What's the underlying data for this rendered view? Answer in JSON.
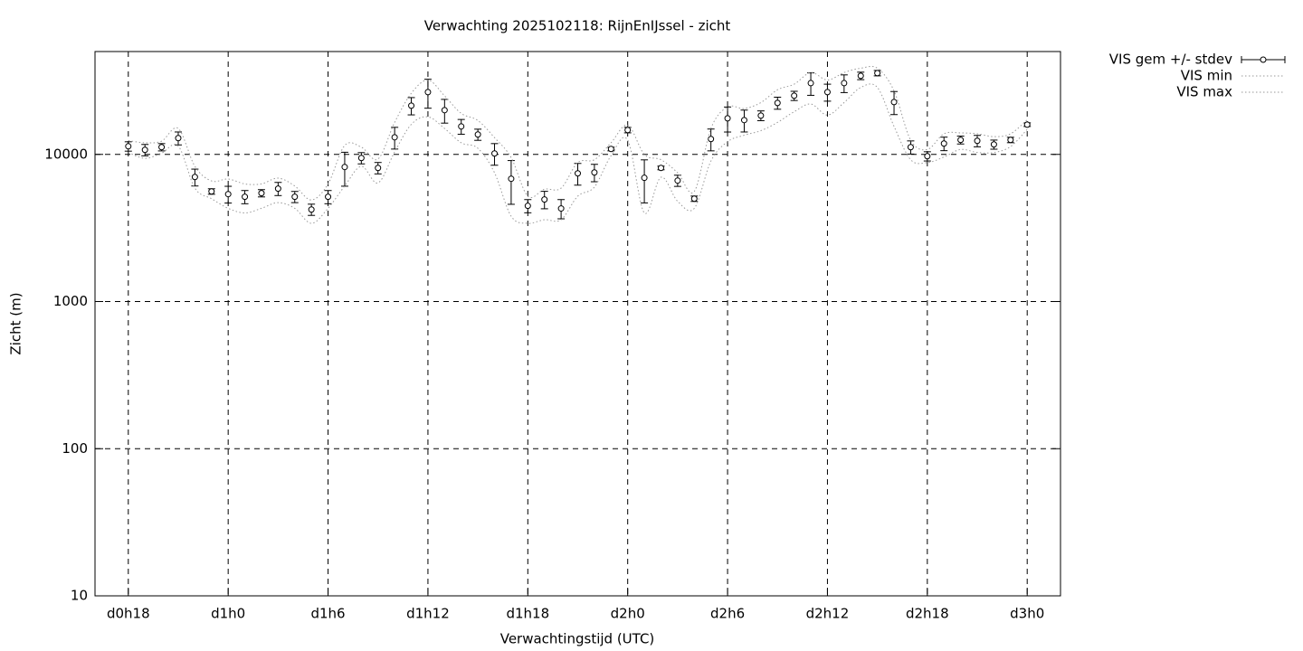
{
  "chart_data": {
    "type": "errorbar",
    "title": "Verwachting 2025102118: RijnEnIJssel - zicht",
    "xlabel": "Verwachtingstijd (UTC)",
    "ylabel": "Zicht (m)",
    "log_y": true,
    "grid": true,
    "legend": "outside-top-right",
    "xlim": [
      16,
      74
    ],
    "xticks": [
      {
        "value": 18,
        "label": "d0h18"
      },
      {
        "value": 24,
        "label": "d1h0"
      },
      {
        "value": 30,
        "label": "d1h6"
      },
      {
        "value": 36,
        "label": "d1h12"
      },
      {
        "value": 42,
        "label": "d1h18"
      },
      {
        "value": 48,
        "label": "d2h0"
      },
      {
        "value": 54,
        "label": "d2h6"
      },
      {
        "value": 60,
        "label": "d2h12"
      },
      {
        "value": 66,
        "label": "d2h18"
      },
      {
        "value": 72,
        "label": "d3h0"
      }
    ],
    "ylim": [
      10,
      50000
    ],
    "yticks": [
      10,
      100,
      1000,
      10000
    ],
    "x": [
      18,
      19,
      20,
      21,
      22,
      23,
      24,
      25,
      26,
      27,
      28,
      29,
      30,
      31,
      32,
      33,
      34,
      35,
      36,
      37,
      38,
      39,
      40,
      41,
      42,
      43,
      44,
      45,
      46,
      47,
      48,
      49,
      50,
      51,
      52,
      53,
      54,
      55,
      56,
      57,
      58,
      59,
      60,
      61,
      62,
      63,
      64,
      65,
      66,
      67,
      68,
      69,
      70,
      71,
      72
    ],
    "series": [
      {
        "name": "VIS gem +/- stdev",
        "color": "#000000",
        "style": "errorbars",
        "values": [
          11350,
          10730,
          11200,
          12900,
          7020,
          5600,
          5370,
          5150,
          5450,
          5850,
          5150,
          4220,
          5150,
          8210,
          9450,
          8090,
          13070,
          21440,
          26500,
          19980,
          15490,
          13650,
          10140,
          6830,
          4470,
          4940,
          4290,
          7430,
          7540,
          10880,
          14640,
          6930,
          8090,
          6640,
          5000,
          12720,
          17590,
          17100,
          18350,
          22370,
          25040,
          30500,
          26500,
          30500,
          34200,
          35680,
          22690,
          11200,
          9720,
          11850,
          12540,
          12360,
          11680,
          12540,
          15930
        ],
        "errors": [
          830,
          950,
          640,
          1300,
          920,
          240,
          700,
          530,
          310,
          600,
          450,
          370,
          530,
          2130,
          830,
          720,
          2200,
          2880,
          5900,
          3670,
          1780,
          1190,
          1700,
          2250,
          460,
          670,
          640,
          1250,
          1020,
          310,
          630,
          2250,
          230,
          580,
          210,
          2150,
          3400,
          2900,
          1400,
          2100,
          1800,
          5300,
          3500,
          4200,
          2000,
          1500,
          4050,
          1150,
          700,
          1250,
          770,
          1100,
          830,
          530,
          450
        ]
      },
      {
        "name": "VIS min",
        "color": "#999999",
        "style": "dotted",
        "values": [
          10300,
          9400,
          10200,
          11400,
          5900,
          5000,
          4300,
          4000,
          4300,
          4700,
          4300,
          3400,
          4300,
          6100,
          8300,
          6400,
          10400,
          16000,
          18000,
          15000,
          12000,
          11000,
          7500,
          3800,
          3400,
          3600,
          3600,
          5200,
          6000,
          9800,
          12500,
          4000,
          7000,
          4800,
          4300,
          9000,
          12200,
          13500,
          14500,
          16500,
          19500,
          22000,
          18500,
          22500,
          28500,
          28500,
          15500,
          9200,
          8800,
          9600,
          10800,
          10300,
          10300,
          11300,
          14800
        ]
      },
      {
        "name": "VIS max",
        "color": "#999999",
        "style": "dotted",
        "values": [
          12400,
          12000,
          12300,
          15000,
          8300,
          6600,
          6800,
          6300,
          6300,
          6900,
          6100,
          4900,
          6300,
          11500,
          11200,
          9300,
          16500,
          26000,
          32000,
          25000,
          19000,
          17000,
          13000,
          9500,
          5200,
          5800,
          5900,
          8800,
          9200,
          12000,
          15800,
          10000,
          9200,
          7500,
          5600,
          15000,
          21000,
          20500,
          22500,
          27500,
          30000,
          36000,
          32000,
          36000,
          38500,
          38500,
          27000,
          12500,
          10800,
          13800,
          14000,
          13800,
          13200,
          13800,
          17200
        ]
      }
    ]
  }
}
